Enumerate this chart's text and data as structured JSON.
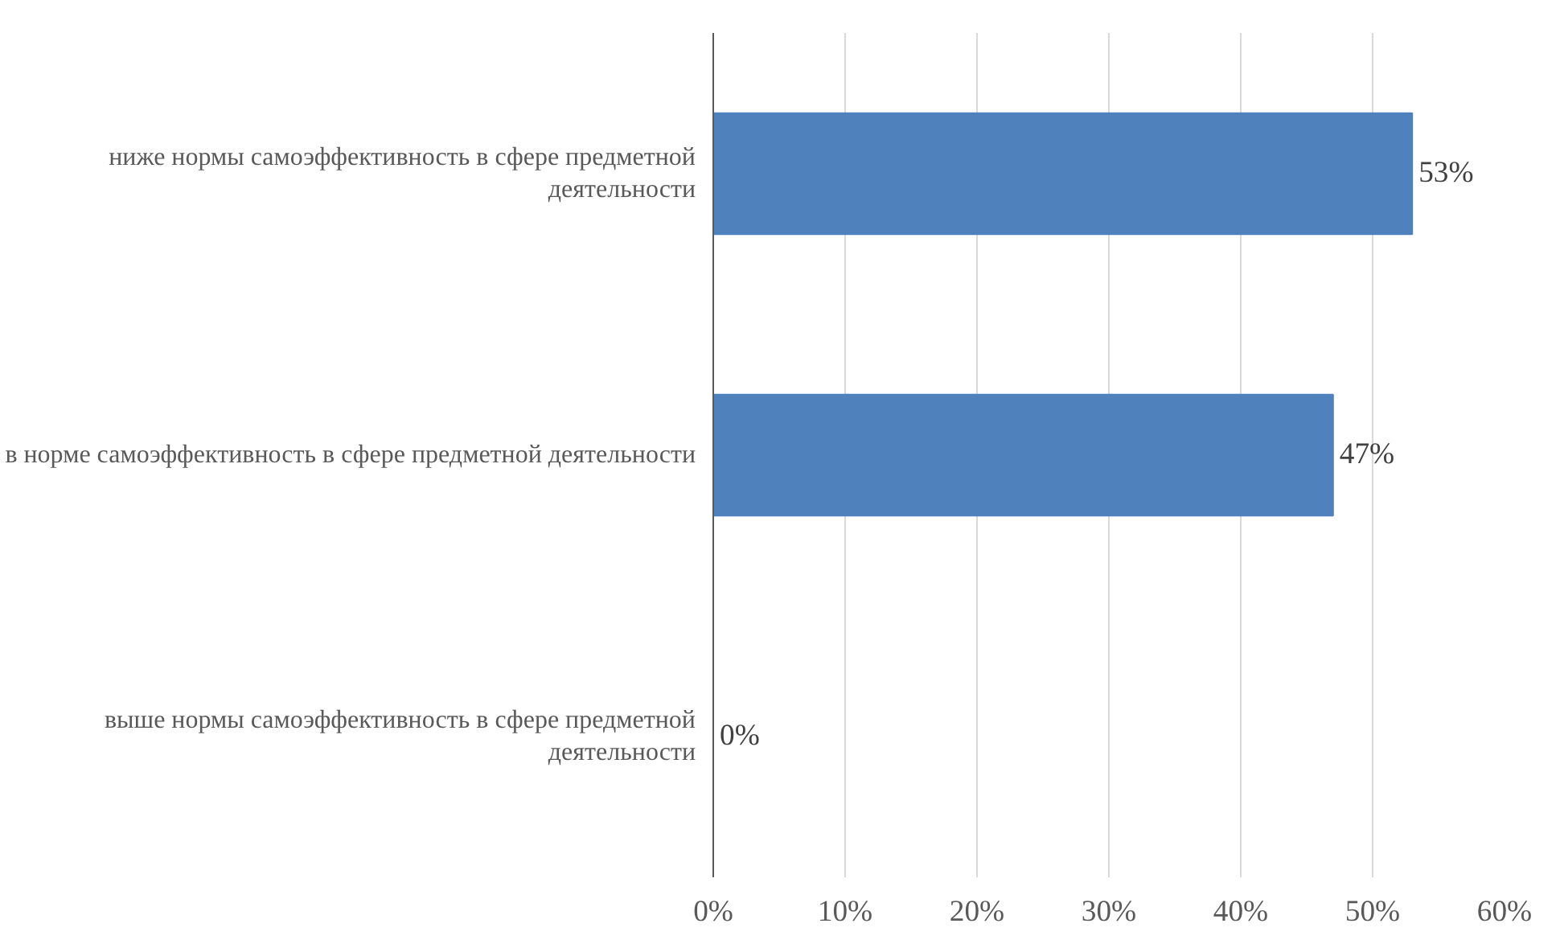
{
  "chart_data": {
    "type": "bar",
    "orientation": "horizontal",
    "categories": [
      "ниже нормы самоэффективность в сфере предметной деятельности",
      "в норме самоэффективность в сфере предметной деятельности",
      "выше нормы самоэффективность в сфере предметной деятельности"
    ],
    "values": [
      53,
      47,
      0
    ],
    "value_labels": [
      "53%",
      "47%",
      "0%"
    ],
    "color": "#4f81bd",
    "xlim": [
      0,
      60
    ],
    "xticks": [
      {
        "value": 0,
        "label": "0%"
      },
      {
        "value": 10,
        "label": "10%"
      },
      {
        "value": 20,
        "label": "20%"
      },
      {
        "value": 30,
        "label": "30%"
      },
      {
        "value": 40,
        "label": "40%"
      },
      {
        "value": 50,
        "label": "50%"
      },
      {
        "value": 60,
        "label": "60%"
      }
    ],
    "grid": "x"
  }
}
